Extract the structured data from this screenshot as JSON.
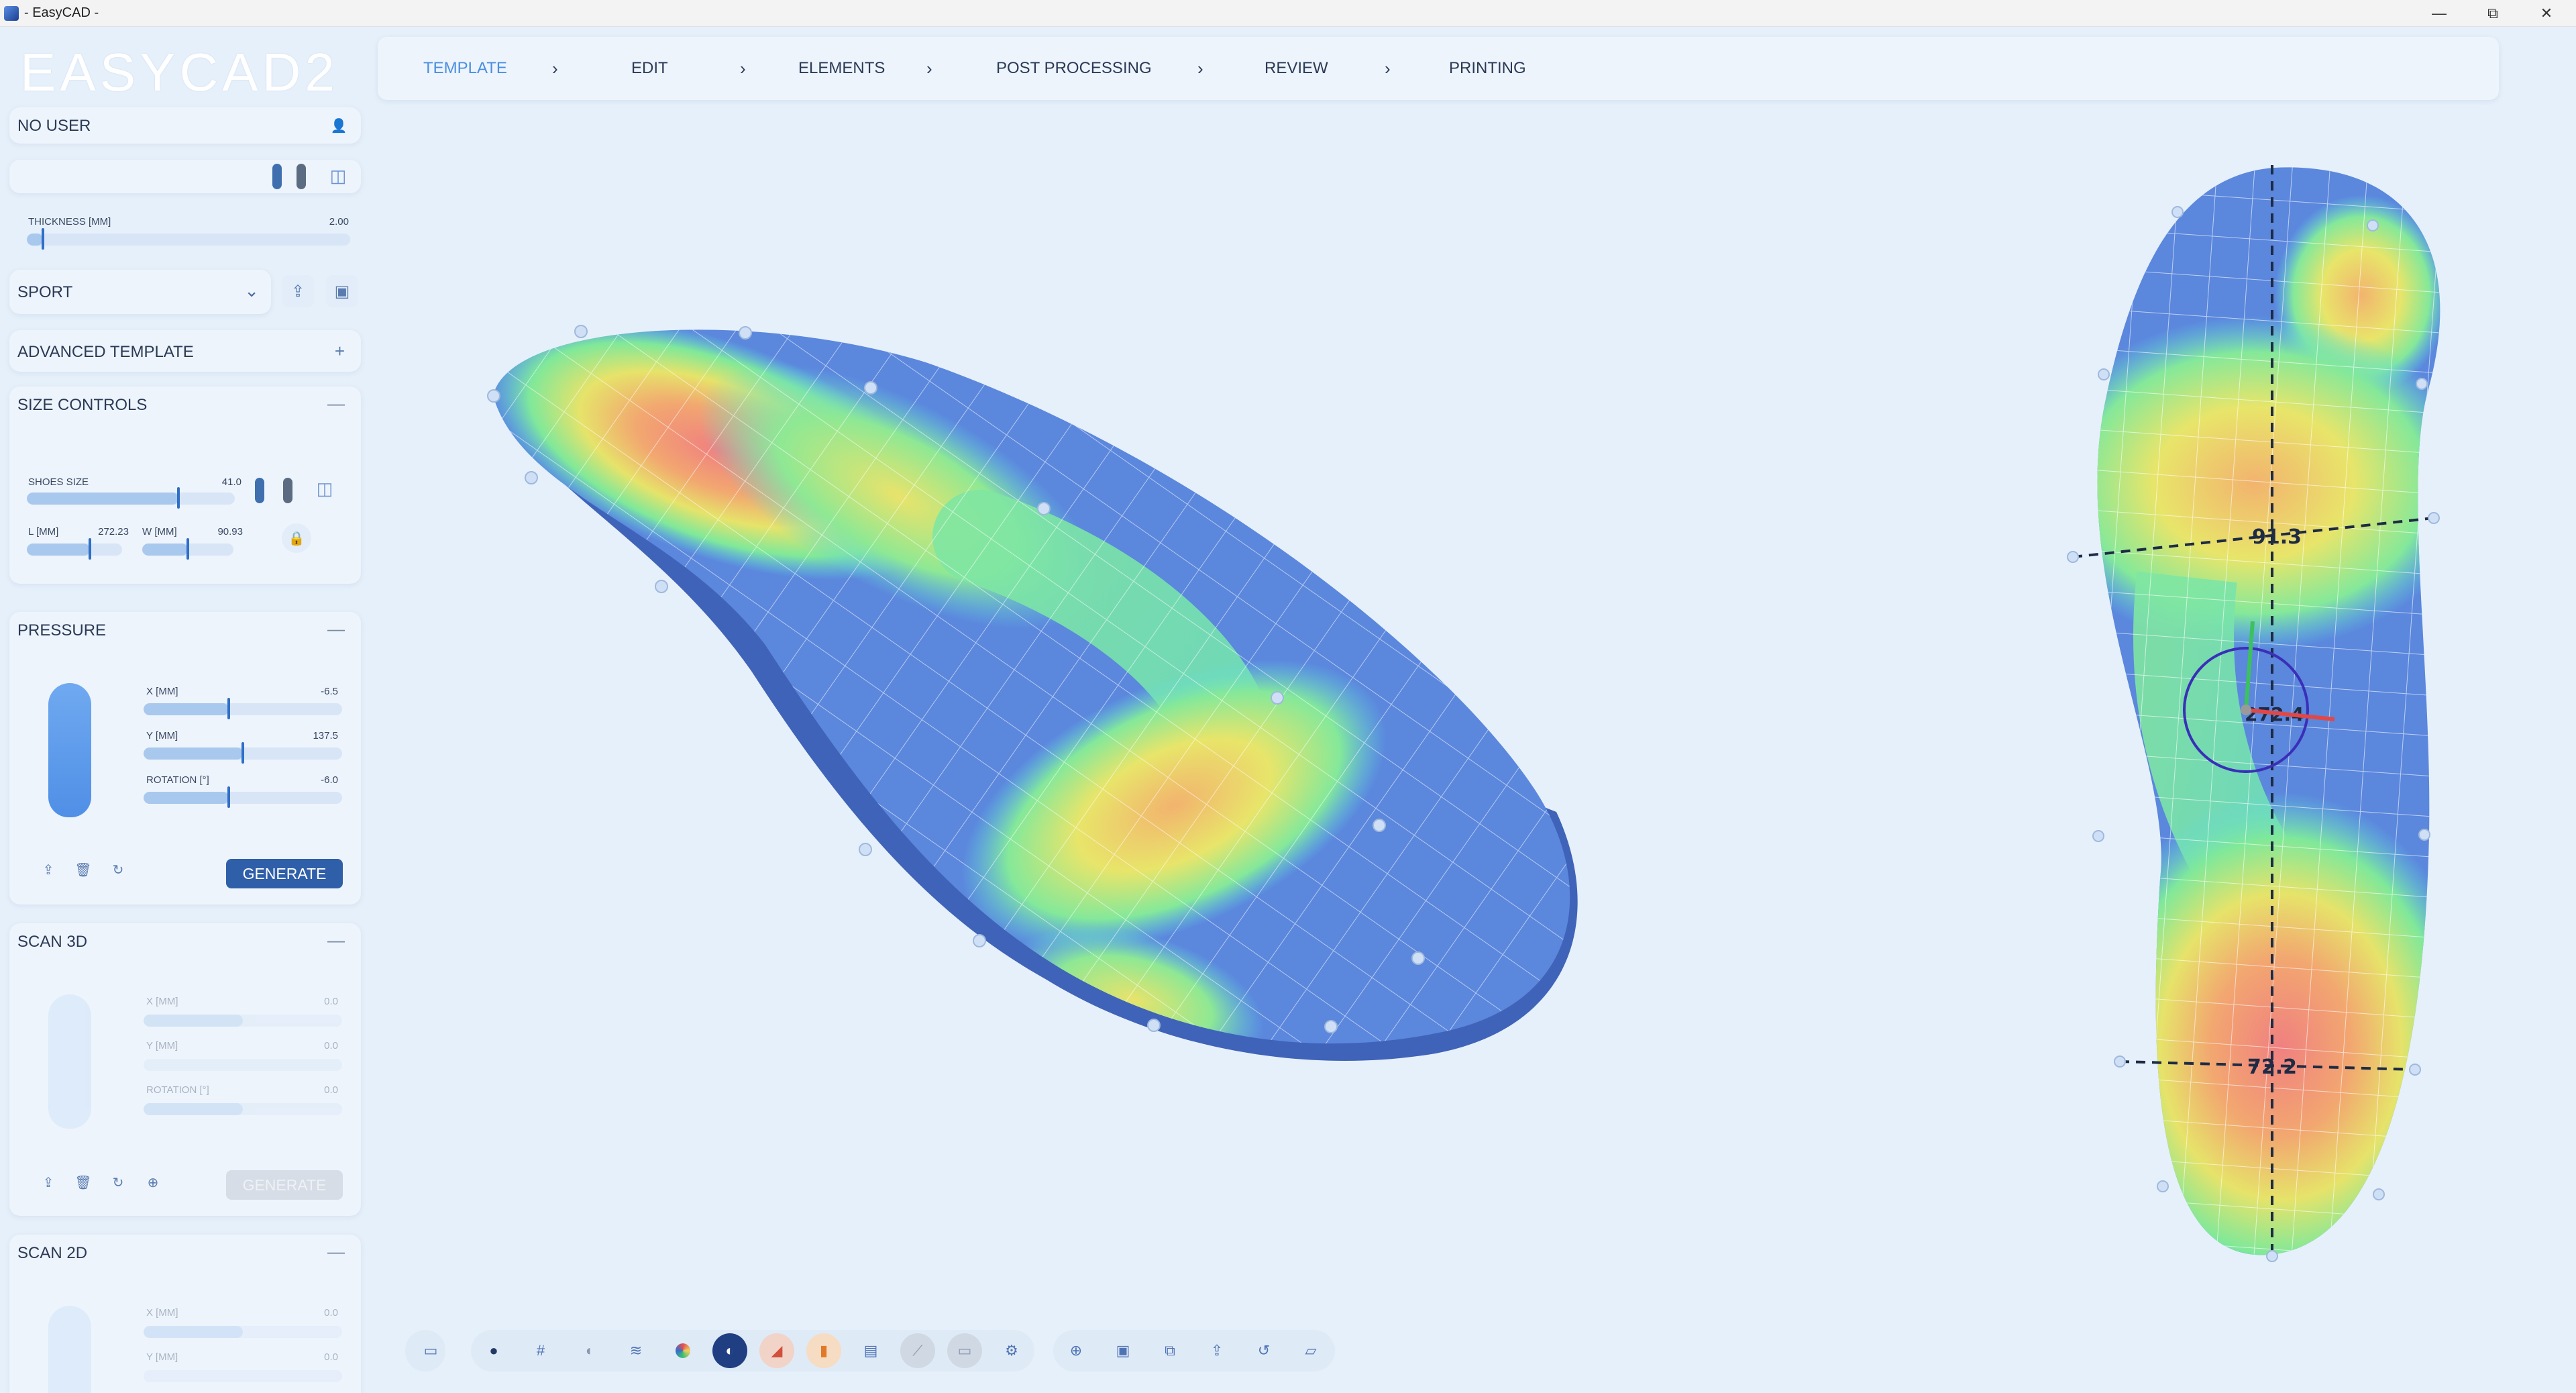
{
  "window": {
    "title": "- EasyCAD -",
    "minimize": "—",
    "restore": "⧉",
    "close": "✕"
  },
  "logo": "EASYCAD2",
  "steps": [
    {
      "label": "TEMPLATE",
      "active": true
    },
    {
      "label": "EDIT"
    },
    {
      "label": "ELEMENTS"
    },
    {
      "label": "POST PROCESSING"
    },
    {
      "label": "REVIEW"
    },
    {
      "label": "PRINTING"
    }
  ],
  "step_separator": "›",
  "user": {
    "label": "NO USER"
  },
  "thickness": {
    "label": "THICKNESS [MM]",
    "value": "2.00",
    "fraction": 0.05
  },
  "template": {
    "selected": "SPORT"
  },
  "advanced": {
    "label": "ADVANCED TEMPLATE",
    "toggle": "+"
  },
  "size_controls": {
    "title": "SIZE CONTROLS",
    "collapse": "—",
    "shoe_size": {
      "label": "SHOES SIZE",
      "value": "41.0",
      "fraction": 0.73
    },
    "length": {
      "label": "L [MM]",
      "value": "272.23",
      "fraction": 0.66
    },
    "width": {
      "label": "W [MM]",
      "value": "90.93",
      "fraction": 0.5
    }
  },
  "pressure": {
    "title": "PRESSURE",
    "collapse": "—",
    "x": {
      "label": "X [MM]",
      "value": "-6.5",
      "fraction": 0.43
    },
    "y": {
      "label": "Y [MM]",
      "value": "137.5",
      "fraction": 0.5
    },
    "rotation": {
      "label": "ROTATION [°]",
      "value": "-6.0",
      "fraction": 0.43
    },
    "generate": "GENERATE"
  },
  "scan3d": {
    "title": "SCAN 3D",
    "collapse": "—",
    "x": {
      "label": "X [MM]",
      "value": "0.0",
      "fraction": 0.5
    },
    "y": {
      "label": "Y [MM]",
      "value": "0.0",
      "fraction": 0.0
    },
    "rotation": {
      "label": "ROTATION [°]",
      "value": "0.0",
      "fraction": 0.5
    },
    "generate": "GENERATE"
  },
  "scan2d": {
    "title": "SCAN 2D",
    "collapse": "—",
    "x": {
      "label": "X [MM]",
      "value": "0.0",
      "fraction": 0.5
    },
    "y": {
      "label": "Y [MM]",
      "value": "0.0",
      "fraction": 0.0
    }
  },
  "viewport": {
    "dimension_forefoot": "91.3",
    "dimension_center": "272.4",
    "dimension_heel": "72.2"
  },
  "toolbar_icons": [
    "camera-icon",
    "foot-solid-icon",
    "grid-icon",
    "foot-outline-icon",
    "layers-icon",
    "color-map-icon",
    "pressure-map-icon",
    "heel-icon",
    "foot-orange-icon",
    "panel-icon",
    "measure-icon",
    "ruler-icon",
    "settings-icon",
    "zoom-fit-icon",
    "save-icon",
    "save-as-icon",
    "export-icon",
    "history-icon",
    "folder-icon"
  ],
  "colors": {
    "accent": "#4a8fe0",
    "primary_button": "#2f5fa8",
    "background": "#e6f0fa",
    "insole_blue": "#5b87dd"
  }
}
